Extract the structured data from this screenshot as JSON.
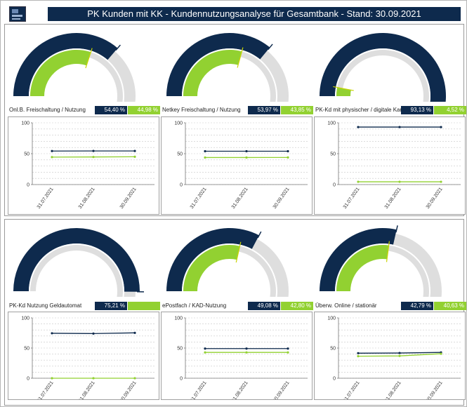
{
  "header": {
    "title": "PK Kunden mit KK - Kundennutzungsanalyse für Gesamtbank - Stand: 30.09.2021"
  },
  "colors": {
    "navy": "#0e2a4d",
    "green": "#92d131",
    "gauge_track": "#dedede"
  },
  "dates": [
    "31.07.2021",
    "31.08.2021",
    "30.09.2021"
  ],
  "panels": [
    {
      "label": "Onl.B. Freischaltung / Nutzung",
      "blue_text": "54,40 %",
      "green_text": "44,98 %",
      "blue_pct": 54.4,
      "green_pct": 44.98
    },
    {
      "label": "Netkey Freischaltung / Nutzung",
      "blue_text": "53,97 %",
      "green_text": "43,85 %",
      "blue_pct": 53.97,
      "green_pct": 43.85
    },
    {
      "label": "PK-Kd mit physischer / digitale Karte",
      "blue_text": "93,13 %",
      "green_text": "4,52 %",
      "blue_pct": 93.13,
      "green_pct": 4.52
    },
    {
      "label": "PK-Kd Nutzung Geldautomat",
      "blue_text": "75,21 %",
      "green_text": "",
      "blue_pct": 75.21,
      "green_pct": 0
    },
    {
      "label": "ePostfach / KAD-Nutzung",
      "blue_text": "49,08 %",
      "green_text": "42,80 %",
      "blue_pct": 49.08,
      "green_pct": 42.8
    },
    {
      "label": "Überw. Online / stationär",
      "blue_text": "42,79 %",
      "green_text": "40,63 %",
      "blue_pct": 42.79,
      "green_pct": 40.63
    }
  ],
  "chart_data": [
    {
      "type": "line",
      "x": [
        "31.07.2021",
        "31.08.2021",
        "30.09.2021"
      ],
      "ylim": [
        0,
        100
      ],
      "yticks": [
        0,
        50,
        100
      ],
      "series": [
        {
          "values": [
            54.3,
            54.4,
            54.4
          ],
          "color": "#0e2a4d"
        },
        {
          "values": [
            44.5,
            44.7,
            45.0
          ],
          "color": "#92d131"
        }
      ]
    },
    {
      "type": "line",
      "x": [
        "31.07.2021",
        "31.08.2021",
        "30.09.2021"
      ],
      "ylim": [
        0,
        100
      ],
      "yticks": [
        0,
        50,
        100
      ],
      "series": [
        {
          "values": [
            54.0,
            54.0,
            54.0
          ],
          "color": "#0e2a4d"
        },
        {
          "values": [
            43.8,
            43.8,
            43.9
          ],
          "color": "#92d131"
        }
      ]
    },
    {
      "type": "line",
      "x": [
        "31.07.2021",
        "31.08.2021",
        "30.09.2021"
      ],
      "ylim": [
        0,
        100
      ],
      "yticks": [
        0,
        50,
        100
      ],
      "series": [
        {
          "values": [
            93.1,
            93.1,
            93.1
          ],
          "color": "#0e2a4d"
        },
        {
          "values": [
            4.5,
            4.5,
            4.5
          ],
          "color": "#92d131"
        }
      ]
    },
    {
      "type": "line",
      "x": [
        "31.07.2021",
        "31.08.2021",
        "30.09.2021"
      ],
      "ylim": [
        0,
        100
      ],
      "yticks": [
        0,
        50,
        100
      ],
      "series": [
        {
          "values": [
            74.5,
            74.0,
            75.2
          ],
          "color": "#0e2a4d"
        },
        {
          "values": [
            0,
            0,
            0
          ],
          "color": "#92d131"
        }
      ]
    },
    {
      "type": "line",
      "x": [
        "31.07.2021",
        "31.08.2021",
        "30.09.2021"
      ],
      "ylim": [
        0,
        100
      ],
      "yticks": [
        0,
        50,
        100
      ],
      "series": [
        {
          "values": [
            49.1,
            49.1,
            49.1
          ],
          "color": "#0e2a4d"
        },
        {
          "values": [
            42.8,
            42.8,
            42.8
          ],
          "color": "#92d131"
        }
      ]
    },
    {
      "type": "line",
      "x": [
        "31.07.2021",
        "31.08.2021",
        "30.09.2021"
      ],
      "ylim": [
        0,
        100
      ],
      "yticks": [
        0,
        50,
        100
      ],
      "series": [
        {
          "values": [
            41.5,
            41.8,
            42.8
          ],
          "color": "#0e2a4d"
        },
        {
          "values": [
            36.5,
            37.0,
            40.6
          ],
          "color": "#92d131"
        }
      ]
    }
  ]
}
